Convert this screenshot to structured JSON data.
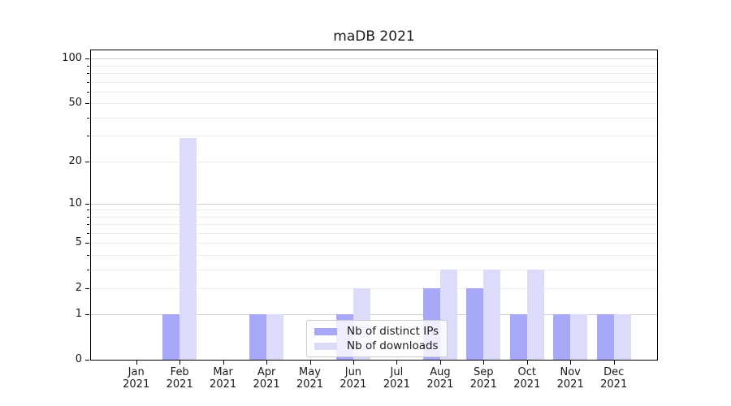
{
  "chart_data": {
    "type": "bar",
    "title": "maDB 2021",
    "categories": [
      "Jan",
      "Feb",
      "Mar",
      "Apr",
      "May",
      "Jun",
      "Jul",
      "Aug",
      "Sep",
      "Oct",
      "Nov",
      "Dec"
    ],
    "year_label": "2021",
    "series": [
      {
        "name": "Nb of distinct IPs",
        "color": "#a8a8f8",
        "values": [
          0,
          1,
          0,
          1,
          0,
          1,
          0,
          2,
          2,
          1,
          1,
          1
        ]
      },
      {
        "name": "Nb of downloads",
        "color": "#dcdcfa",
        "values": [
          0,
          29,
          0,
          1,
          0,
          2,
          0,
          3,
          3,
          3,
          1,
          1
        ]
      }
    ],
    "y_axis": {
      "scale": "log10(1+x)",
      "tick_labels": [
        "0",
        "1",
        "2",
        "5",
        "10",
        "20",
        "50",
        "100"
      ],
      "tick_values": [
        0,
        1,
        2,
        5,
        10,
        20,
        50,
        100
      ],
      "major_gridlines": [
        1,
        10,
        100
      ],
      "minor_gridlines": [
        2,
        3,
        4,
        5,
        6,
        7,
        8,
        9,
        20,
        30,
        40,
        50,
        60,
        70,
        80,
        90
      ],
      "ylim": [
        0,
        113
      ]
    },
    "xlabel": "",
    "ylabel": "",
    "grid": true,
    "legend_position": "lower center"
  },
  "colors": {
    "major_grid": "#d2d2d2",
    "minor_grid": "#ececec",
    "axis": "#000000",
    "text": "#1a1a1a",
    "background": "#ffffff"
  }
}
